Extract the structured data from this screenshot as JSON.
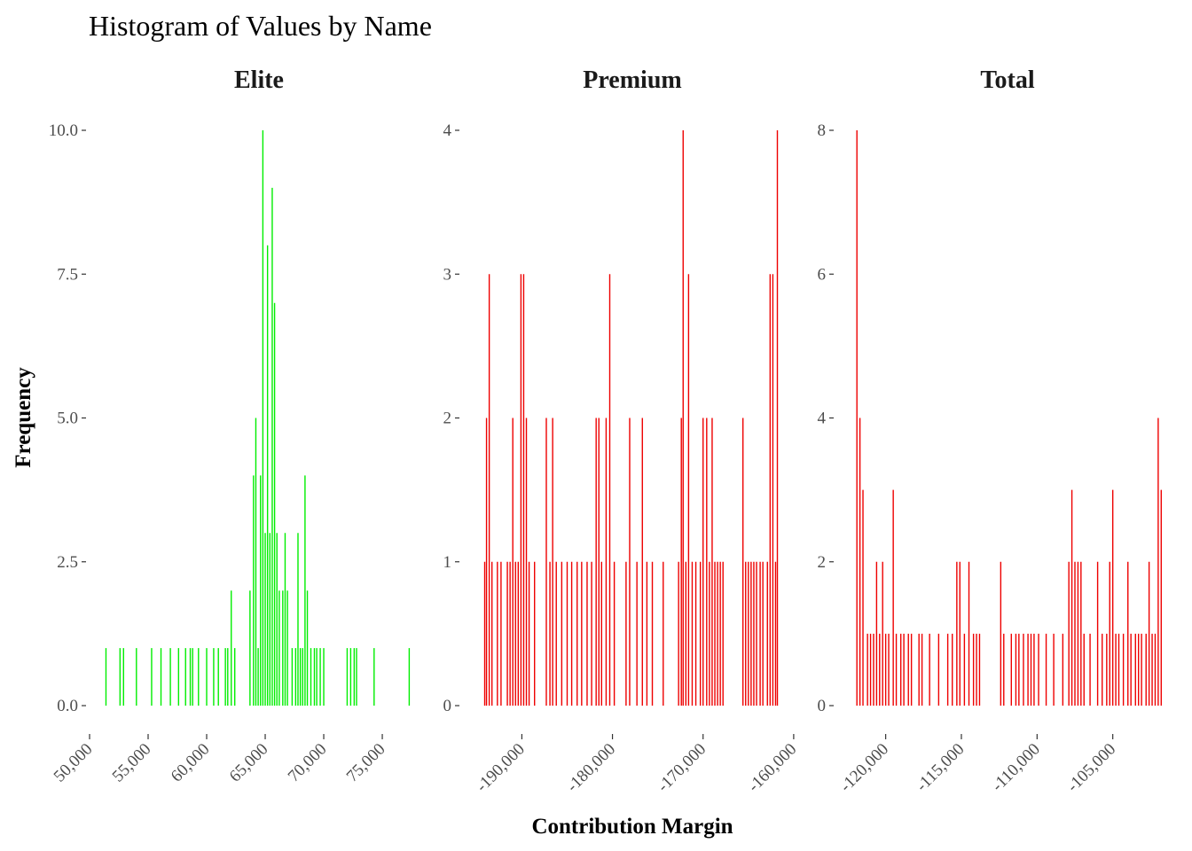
{
  "chart_data": {
    "type": "bar",
    "title": "Histogram of Values by Name",
    "xlabel": "Contribution Margin",
    "ylabel": "Frequency",
    "grid": false,
    "legend": "none",
    "panels": [
      {
        "name": "Elite",
        "color": "#00EE00",
        "xlim": [
          50000,
          77800
        ],
        "ylim": [
          0,
          10
        ],
        "x_ticks": [
          50000,
          55000,
          60000,
          65000,
          70000,
          75000
        ],
        "x_tick_labels": [
          "50,000",
          "55,000",
          "60,000",
          "65,000",
          "70,000",
          "75,000"
        ],
        "y_ticks": [
          0,
          2.5,
          5,
          7.5,
          10
        ],
        "y_tick_labels": [
          "0.0",
          "2.5",
          "5.0",
          "7.5",
          "10.0"
        ],
        "bins": [
          {
            "x": 51400,
            "count": 1
          },
          {
            "x": 52600,
            "count": 1
          },
          {
            "x": 52900,
            "count": 1
          },
          {
            "x": 54000,
            "count": 1
          },
          {
            "x": 55300,
            "count": 1
          },
          {
            "x": 56100,
            "count": 1
          },
          {
            "x": 56900,
            "count": 1
          },
          {
            "x": 57600,
            "count": 1
          },
          {
            "x": 58200,
            "count": 1
          },
          {
            "x": 58600,
            "count": 1
          },
          {
            "x": 58800,
            "count": 1
          },
          {
            "x": 59300,
            "count": 1
          },
          {
            "x": 60000,
            "count": 1
          },
          {
            "x": 60600,
            "count": 1
          },
          {
            "x": 61000,
            "count": 1
          },
          {
            "x": 61600,
            "count": 1
          },
          {
            "x": 61800,
            "count": 1
          },
          {
            "x": 62100,
            "count": 2
          },
          {
            "x": 62400,
            "count": 1
          },
          {
            "x": 63700,
            "count": 2
          },
          {
            "x": 64000,
            "count": 4
          },
          {
            "x": 64200,
            "count": 5
          },
          {
            "x": 64400,
            "count": 1
          },
          {
            "x": 64600,
            "count": 4
          },
          {
            "x": 64800,
            "count": 10
          },
          {
            "x": 65000,
            "count": 3
          },
          {
            "x": 65200,
            "count": 8
          },
          {
            "x": 65400,
            "count": 3
          },
          {
            "x": 65600,
            "count": 9
          },
          {
            "x": 65800,
            "count": 7
          },
          {
            "x": 66000,
            "count": 3
          },
          {
            "x": 66200,
            "count": 2
          },
          {
            "x": 66500,
            "count": 2
          },
          {
            "x": 66700,
            "count": 3
          },
          {
            "x": 66900,
            "count": 2
          },
          {
            "x": 67300,
            "count": 1
          },
          {
            "x": 67600,
            "count": 1
          },
          {
            "x": 67800,
            "count": 3
          },
          {
            "x": 68000,
            "count": 1
          },
          {
            "x": 68200,
            "count": 1
          },
          {
            "x": 68400,
            "count": 4
          },
          {
            "x": 68600,
            "count": 2
          },
          {
            "x": 68900,
            "count": 1
          },
          {
            "x": 69200,
            "count": 1
          },
          {
            "x": 69400,
            "count": 1
          },
          {
            "x": 69700,
            "count": 1
          },
          {
            "x": 70000,
            "count": 1
          },
          {
            "x": 72000,
            "count": 1
          },
          {
            "x": 72300,
            "count": 1
          },
          {
            "x": 72600,
            "count": 1
          },
          {
            "x": 72800,
            "count": 1
          },
          {
            "x": 74300,
            "count": 1
          },
          {
            "x": 77300,
            "count": 1
          }
        ]
      },
      {
        "name": "Premium",
        "color": "#EE0000",
        "xlim": [
          -196500,
          -159500
        ],
        "ylim": [
          0,
          4
        ],
        "x_ticks": [
          -190000,
          -180000,
          -170000,
          -160000
        ],
        "x_tick_labels": [
          "-190,000",
          "-180,000",
          "-170,000",
          "-160,000"
        ],
        "y_ticks": [
          0,
          1,
          2,
          3,
          4
        ],
        "y_tick_labels": [
          "0",
          "1",
          "2",
          "3",
          "4"
        ],
        "bins": [
          {
            "x": -194100,
            "count": 1
          },
          {
            "x": -193900,
            "count": 2
          },
          {
            "x": -193600,
            "count": 3
          },
          {
            "x": -193300,
            "count": 1
          },
          {
            "x": -192700,
            "count": 1
          },
          {
            "x": -192300,
            "count": 1
          },
          {
            "x": -191600,
            "count": 1
          },
          {
            "x": -191300,
            "count": 1
          },
          {
            "x": -191000,
            "count": 2
          },
          {
            "x": -190700,
            "count": 1
          },
          {
            "x": -190400,
            "count": 1
          },
          {
            "x": -190100,
            "count": 3
          },
          {
            "x": -189800,
            "count": 3
          },
          {
            "x": -189500,
            "count": 2
          },
          {
            "x": -189200,
            "count": 1
          },
          {
            "x": -188600,
            "count": 1
          },
          {
            "x": -187300,
            "count": 2
          },
          {
            "x": -186900,
            "count": 1
          },
          {
            "x": -186600,
            "count": 2
          },
          {
            "x": -186200,
            "count": 1
          },
          {
            "x": -185600,
            "count": 1
          },
          {
            "x": -185000,
            "count": 1
          },
          {
            "x": -184500,
            "count": 1
          },
          {
            "x": -183900,
            "count": 1
          },
          {
            "x": -183400,
            "count": 1
          },
          {
            "x": -182800,
            "count": 1
          },
          {
            "x": -182300,
            "count": 1
          },
          {
            "x": -181800,
            "count": 2
          },
          {
            "x": -181500,
            "count": 2
          },
          {
            "x": -181200,
            "count": 1
          },
          {
            "x": -180700,
            "count": 2
          },
          {
            "x": -180300,
            "count": 3
          },
          {
            "x": -179800,
            "count": 1
          },
          {
            "x": -178500,
            "count": 1
          },
          {
            "x": -178100,
            "count": 2
          },
          {
            "x": -177300,
            "count": 1
          },
          {
            "x": -176700,
            "count": 2
          },
          {
            "x": -176200,
            "count": 1
          },
          {
            "x": -175600,
            "count": 1
          },
          {
            "x": -174400,
            "count": 1
          },
          {
            "x": -172700,
            "count": 1
          },
          {
            "x": -172400,
            "count": 2
          },
          {
            "x": -172200,
            "count": 4
          },
          {
            "x": -171900,
            "count": 1
          },
          {
            "x": -171600,
            "count": 3
          },
          {
            "x": -171200,
            "count": 1
          },
          {
            "x": -170800,
            "count": 1
          },
          {
            "x": -170300,
            "count": 1
          },
          {
            "x": -170000,
            "count": 2
          },
          {
            "x": -169600,
            "count": 2
          },
          {
            "x": -169300,
            "count": 1
          },
          {
            "x": -169000,
            "count": 2
          },
          {
            "x": -168700,
            "count": 1
          },
          {
            "x": -168400,
            "count": 1
          },
          {
            "x": -168100,
            "count": 1
          },
          {
            "x": -167800,
            "count": 1
          },
          {
            "x": -165600,
            "count": 2
          },
          {
            "x": -165300,
            "count": 1
          },
          {
            "x": -165000,
            "count": 1
          },
          {
            "x": -164700,
            "count": 1
          },
          {
            "x": -164400,
            "count": 1
          },
          {
            "x": -164100,
            "count": 1
          },
          {
            "x": -163700,
            "count": 1
          },
          {
            "x": -163400,
            "count": 1
          },
          {
            "x": -162900,
            "count": 1
          },
          {
            "x": -162600,
            "count": 3
          },
          {
            "x": -162300,
            "count": 3
          },
          {
            "x": -162000,
            "count": 1
          },
          {
            "x": -161800,
            "count": 4
          }
        ]
      },
      {
        "name": "Total",
        "color": "#EE0000",
        "xlim": [
          -123200,
          -101700
        ],
        "ylim": [
          0,
          8
        ],
        "x_ticks": [
          -120000,
          -115000,
          -110000,
          -105000
        ],
        "x_tick_labels": [
          "-120,000",
          "-115,000",
          "-110,000",
          "-105,000"
        ],
        "y_ticks": [
          0,
          2,
          4,
          6,
          8
        ],
        "y_tick_labels": [
          "0",
          "2",
          "4",
          "6",
          "8"
        ],
        "bins": [
          {
            "x": -121900,
            "count": 8
          },
          {
            "x": -121700,
            "count": 4
          },
          {
            "x": -121500,
            "count": 3
          },
          {
            "x": -121200,
            "count": 1
          },
          {
            "x": -121000,
            "count": 1
          },
          {
            "x": -120800,
            "count": 1
          },
          {
            "x": -120600,
            "count": 2
          },
          {
            "x": -120400,
            "count": 1
          },
          {
            "x": -120200,
            "count": 2
          },
          {
            "x": -120000,
            "count": 1
          },
          {
            "x": -119800,
            "count": 1
          },
          {
            "x": -119500,
            "count": 3
          },
          {
            "x": -119300,
            "count": 1
          },
          {
            "x": -119000,
            "count": 1
          },
          {
            "x": -118800,
            "count": 1
          },
          {
            "x": -118500,
            "count": 1
          },
          {
            "x": -118300,
            "count": 1
          },
          {
            "x": -117800,
            "count": 1
          },
          {
            "x": -117600,
            "count": 1
          },
          {
            "x": -117100,
            "count": 1
          },
          {
            "x": -116500,
            "count": 1
          },
          {
            "x": -115900,
            "count": 1
          },
          {
            "x": -115600,
            "count": 1
          },
          {
            "x": -115300,
            "count": 2
          },
          {
            "x": -115100,
            "count": 2
          },
          {
            "x": -114800,
            "count": 1
          },
          {
            "x": -114500,
            "count": 2
          },
          {
            "x": -114200,
            "count": 1
          },
          {
            "x": -114000,
            "count": 1
          },
          {
            "x": -113800,
            "count": 1
          },
          {
            "x": -112400,
            "count": 2
          },
          {
            "x": -112200,
            "count": 1
          },
          {
            "x": -111700,
            "count": 1
          },
          {
            "x": -111400,
            "count": 1
          },
          {
            "x": -111200,
            "count": 1
          },
          {
            "x": -110900,
            "count": 1
          },
          {
            "x": -110600,
            "count": 1
          },
          {
            "x": -110400,
            "count": 1
          },
          {
            "x": -110200,
            "count": 1
          },
          {
            "x": -109900,
            "count": 1
          },
          {
            "x": -109400,
            "count": 1
          },
          {
            "x": -108900,
            "count": 1
          },
          {
            "x": -108300,
            "count": 1
          },
          {
            "x": -107900,
            "count": 2
          },
          {
            "x": -107700,
            "count": 3
          },
          {
            "x": -107500,
            "count": 2
          },
          {
            "x": -107300,
            "count": 2
          },
          {
            "x": -107100,
            "count": 2
          },
          {
            "x": -106900,
            "count": 1
          },
          {
            "x": -106500,
            "count": 1
          },
          {
            "x": -106000,
            "count": 2
          },
          {
            "x": -105700,
            "count": 1
          },
          {
            "x": -105400,
            "count": 1
          },
          {
            "x": -105200,
            "count": 2
          },
          {
            "x": -105000,
            "count": 3
          },
          {
            "x": -104800,
            "count": 1
          },
          {
            "x": -104600,
            "count": 1
          },
          {
            "x": -104300,
            "count": 1
          },
          {
            "x": -104000,
            "count": 2
          },
          {
            "x": -103800,
            "count": 1
          },
          {
            "x": -103500,
            "count": 1
          },
          {
            "x": -103300,
            "count": 1
          },
          {
            "x": -103100,
            "count": 1
          },
          {
            "x": -102800,
            "count": 1
          },
          {
            "x": -102600,
            "count": 2
          },
          {
            "x": -102400,
            "count": 1
          },
          {
            "x": -102200,
            "count": 1
          },
          {
            "x": -102000,
            "count": 4
          },
          {
            "x": -101800,
            "count": 3
          }
        ]
      }
    ]
  }
}
